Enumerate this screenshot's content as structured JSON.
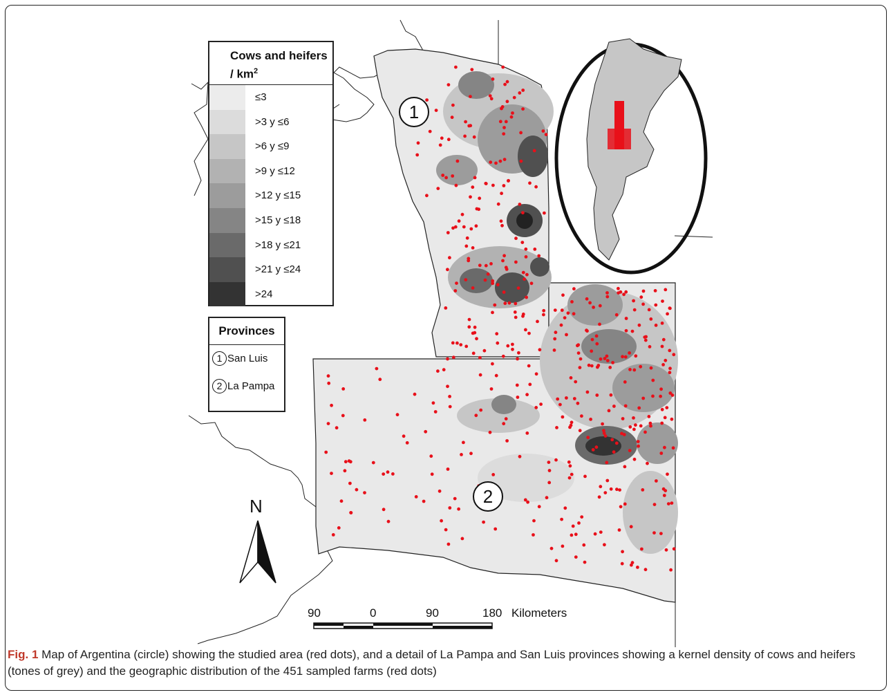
{
  "legend": {
    "title": "Cows and heifers / km",
    "title_sup": "2",
    "classes": [
      {
        "label": "≤3",
        "color": "#ececec"
      },
      {
        "label": ">3 y ≤6",
        "color": "#dcdcdc"
      },
      {
        "label": ">6 y ≤9",
        "color": "#c6c6c6"
      },
      {
        "label": ">9 y ≤12",
        "color": "#b2b2b2"
      },
      {
        "label": ">12 y ≤15",
        "color": "#9c9c9c"
      },
      {
        "label": ">15 y ≤18",
        "color": "#858585"
      },
      {
        "label": ">18 y ≤21",
        "color": "#6a6a6a"
      },
      {
        "label": ">21 y ≤24",
        "color": "#505050"
      },
      {
        "label": ">24",
        "color": "#333333"
      }
    ]
  },
  "provinces": {
    "title": "Provinces",
    "items": [
      {
        "num": "1",
        "name": "San Luis"
      },
      {
        "num": "2",
        "name": "La Pampa"
      }
    ]
  },
  "map_labels": {
    "province_1": "1",
    "province_2": "2",
    "north": "N"
  },
  "scale_bar": {
    "ticks": [
      "90",
      "0",
      "90",
      "180"
    ],
    "unit": "Kilometers"
  },
  "caption": {
    "label": "Fig. 1",
    "text": " Map of Argentina (circle) showing the studied area (red dots), and a detail of La Pampa and San Luis provinces showing a kernel density of cows and heifers (tones of grey) and the geographic distribution of the 451 sampled farms (red dots)"
  },
  "colors": {
    "farm_dot": "#e8101a",
    "outline": "#222222"
  }
}
